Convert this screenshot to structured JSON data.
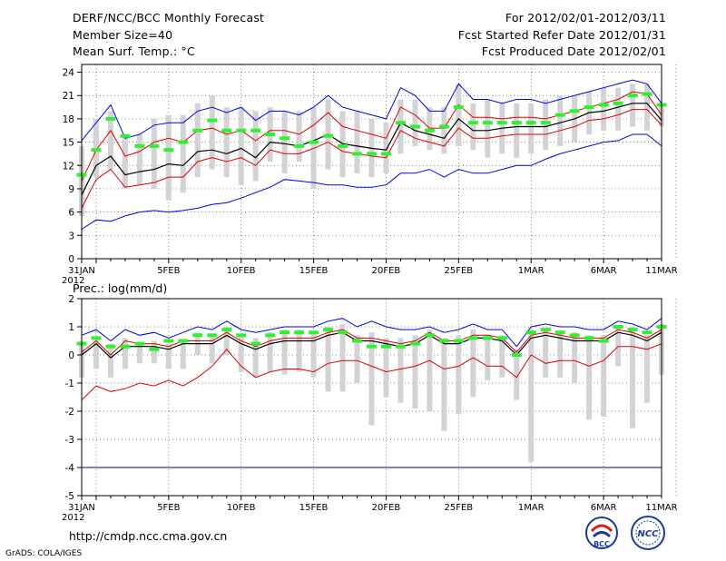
{
  "header": {
    "title": "DERF/NCC/BCC Monthly Forecast",
    "member_size": "Member Size=40",
    "variable": "Mean Surf. Temp.: °C",
    "forecast_period": "For 2012/02/01-2012/03/11",
    "started_refer": "Fcst Started Refer Date 2012/01/31",
    "produced": "Fcst Produced Date 2012/02/01"
  },
  "footer": {
    "url": "http://cmdp.ncc.cma.gov.cn",
    "credit": "GrADS: COLA/IGES",
    "logo_bcc": "BCC",
    "logo_ncc": "NCC"
  },
  "colors": {
    "ensemble_range": "#0000ee",
    "spread": "#dd0000",
    "mean": "#000000",
    "observation": "#33ee33",
    "member_bars": "#d3d3d6",
    "reference": "#000088"
  },
  "chart_data": [
    {
      "type": "line",
      "title": "Mean Surf. Temp.: °C",
      "x_tick_labels": [
        "31JAN",
        "5FEB",
        "10FEB",
        "15FEB",
        "20FEB",
        "25FEB",
        "1MAR",
        "6MAR",
        "11MAR"
      ],
      "x_year_label": "2012",
      "x_range": [
        0,
        40
      ],
      "ylim": [
        0,
        25
      ],
      "y_ticks": [
        0,
        3,
        6,
        9,
        12,
        15,
        18,
        21,
        24
      ],
      "grid": true,
      "series": [
        {
          "name": "member_max",
          "color": "blue",
          "values": [
            15.2,
            17.5,
            19.8,
            15.5,
            16.0,
            17.2,
            17.5,
            17.5,
            19.0,
            19.5,
            18.8,
            19.5,
            17.8,
            19.0,
            19.0,
            18.5,
            19.5,
            21.0,
            19.5,
            19.0,
            18.5,
            18.0,
            22.0,
            21.0,
            19.0,
            19.0,
            22.5,
            20.5,
            20.5,
            20.0,
            20.5,
            20.5,
            20.0,
            20.5,
            21.0,
            21.5,
            22.0,
            22.5,
            23.0,
            22.5,
            20.0
          ]
        },
        {
          "name": "spread_upper",
          "color": "red",
          "values": [
            10.0,
            14.0,
            16.5,
            13.2,
            13.8,
            15.0,
            15.5,
            15.0,
            16.5,
            16.8,
            16.0,
            16.5,
            15.2,
            16.5,
            16.5,
            16.0,
            17.2,
            18.8,
            17.0,
            16.5,
            16.0,
            15.5,
            19.5,
            18.5,
            16.8,
            16.8,
            19.8,
            18.2,
            18.2,
            18.0,
            18.2,
            18.2,
            18.0,
            18.5,
            19.0,
            19.5,
            20.0,
            20.5,
            21.5,
            21.2,
            18.5
          ]
        },
        {
          "name": "ensemble_mean",
          "color": "black",
          "values": [
            8.2,
            12.0,
            13.2,
            10.8,
            11.2,
            11.5,
            12.2,
            12.0,
            13.8,
            14.0,
            13.5,
            14.2,
            13.0,
            15.0,
            14.8,
            14.5,
            15.2,
            16.0,
            14.8,
            14.5,
            14.2,
            14.0,
            17.5,
            16.5,
            16.0,
            15.5,
            18.0,
            16.5,
            16.5,
            16.8,
            17.0,
            17.0,
            17.0,
            17.5,
            18.0,
            18.8,
            19.0,
            19.5,
            20.0,
            20.0,
            17.8
          ]
        },
        {
          "name": "spread_lower",
          "color": "red",
          "values": [
            6.5,
            10.2,
            11.5,
            9.2,
            9.5,
            9.8,
            10.5,
            10.5,
            12.5,
            13.0,
            12.5,
            13.0,
            12.0,
            14.0,
            13.5,
            13.5,
            14.2,
            15.0,
            13.8,
            13.5,
            13.2,
            13.0,
            16.5,
            15.5,
            15.0,
            14.5,
            16.8,
            15.5,
            15.5,
            15.8,
            16.0,
            16.0,
            16.0,
            16.5,
            17.0,
            17.8,
            18.0,
            18.5,
            19.2,
            19.2,
            17.2
          ]
        },
        {
          "name": "member_min",
          "color": "blue",
          "values": [
            3.8,
            5.0,
            4.8,
            5.5,
            6.0,
            6.2,
            6.0,
            6.2,
            6.5,
            7.0,
            7.2,
            7.8,
            8.5,
            9.2,
            10.2,
            10.0,
            9.8,
            9.5,
            9.5,
            9.2,
            9.2,
            9.5,
            11.0,
            11.0,
            11.5,
            10.5,
            11.5,
            11.0,
            11.0,
            11.5,
            12.0,
            12.0,
            12.8,
            13.5,
            14.0,
            14.5,
            15.0,
            15.2,
            16.0,
            16.0,
            14.5
          ]
        }
      ],
      "member_bars": {
        "low": [
          5.5,
          10.5,
          11.5,
          9.0,
          9.5,
          9.0,
          7.5,
          8.5,
          10.5,
          11.5,
          10.5,
          9.5,
          10.0,
          12.5,
          11.0,
          12.5,
          9.0,
          11.5,
          10.5,
          11.0,
          10.5,
          11.0,
          13.5,
          14.5,
          14.0,
          13.5,
          14.5,
          14.0,
          13.0,
          13.5,
          13.0,
          13.5,
          14.0,
          14.5,
          15.0,
          16.0,
          16.5,
          16.5,
          17.0,
          16.5,
          17.0
        ],
        "high": [
          14.5,
          18.0,
          19.0,
          16.0,
          16.0,
          18.0,
          18.5,
          18.5,
          20.0,
          21.0,
          19.5,
          19.5,
          19.0,
          19.5,
          19.0,
          19.0,
          19.5,
          20.5,
          19.0,
          19.0,
          18.0,
          17.5,
          20.5,
          20.5,
          19.5,
          19.5,
          22.5,
          20.0,
          20.5,
          20.0,
          20.0,
          20.0,
          20.5,
          21.0,
          21.0,
          21.5,
          22.0,
          22.0,
          22.5,
          22.5,
          20.0
        ]
      },
      "observation": [
        10.8,
        14.0,
        18.0,
        15.8,
        14.5,
        14.5,
        14.0,
        15.0,
        16.5,
        17.8,
        16.5,
        16.5,
        16.5,
        16.0,
        15.5,
        14.5,
        15.0,
        15.8,
        14.5,
        13.5,
        13.5,
        13.5,
        17.5,
        17.0,
        16.5,
        17.0,
        19.5,
        17.5,
        17.5,
        17.5,
        17.5,
        17.5,
        17.5,
        18.5,
        19.0,
        19.5,
        19.8,
        20.0,
        21.0,
        21.2,
        19.8
      ]
    },
    {
      "type": "line",
      "title": "Prec.: log(mm/d)",
      "x_tick_labels": [
        "31JAN",
        "5FEB",
        "10FEB",
        "15FEB",
        "20FEB",
        "25FEB",
        "1MAR",
        "6MAR",
        "11MAR"
      ],
      "x_year_label": "2012",
      "x_range": [
        0,
        40
      ],
      "ylim": [
        -5,
        2
      ],
      "y_ticks": [
        -5,
        -4,
        -3,
        -2,
        -1,
        0,
        1,
        2
      ],
      "grid": true,
      "reference_line": -4,
      "series": [
        {
          "name": "member_max",
          "color": "blue",
          "values": [
            0.7,
            0.9,
            0.5,
            0.9,
            0.7,
            0.8,
            0.6,
            0.8,
            1.0,
            0.9,
            1.2,
            0.9,
            0.8,
            0.9,
            1.0,
            1.0,
            1.0,
            1.2,
            1.3,
            1.0,
            1.2,
            1.0,
            0.9,
            0.9,
            1.0,
            0.8,
            0.9,
            1.1,
            0.9,
            0.9,
            0.3,
            1.0,
            1.1,
            1.0,
            1.0,
            0.9,
            0.9,
            1.2,
            1.1,
            0.9,
            1.3
          ]
        },
        {
          "name": "spread_upper",
          "color": "red",
          "values": [
            0.1,
            0.5,
            0.0,
            0.5,
            0.4,
            0.4,
            0.3,
            0.5,
            0.5,
            0.5,
            0.8,
            0.5,
            0.3,
            0.5,
            0.6,
            0.6,
            0.6,
            0.8,
            0.9,
            0.6,
            0.6,
            0.5,
            0.4,
            0.5,
            0.8,
            0.5,
            0.5,
            0.7,
            0.7,
            0.6,
            0.1,
            0.7,
            0.8,
            0.7,
            0.6,
            0.6,
            0.6,
            0.9,
            0.8,
            0.6,
            0.9
          ]
        },
        {
          "name": "ensemble_mean",
          "color": "black",
          "values": [
            0.0,
            0.4,
            -0.1,
            0.3,
            0.3,
            0.3,
            0.2,
            0.4,
            0.4,
            0.4,
            0.7,
            0.4,
            0.2,
            0.4,
            0.5,
            0.5,
            0.5,
            0.7,
            0.8,
            0.5,
            0.5,
            0.4,
            0.3,
            0.4,
            0.7,
            0.4,
            0.4,
            0.6,
            0.6,
            0.5,
            0.0,
            0.6,
            0.7,
            0.6,
            0.5,
            0.5,
            0.5,
            0.8,
            0.7,
            0.5,
            0.8
          ]
        },
        {
          "name": "spread_lower",
          "color": "red",
          "values": [
            -1.6,
            -1.1,
            -1.3,
            -1.2,
            -1.0,
            -1.1,
            -0.9,
            -1.1,
            -0.8,
            -0.4,
            0.2,
            -0.4,
            -0.8,
            -0.6,
            -0.5,
            -0.5,
            -0.6,
            -0.3,
            -0.2,
            -0.2,
            -0.4,
            -0.6,
            -0.5,
            -0.4,
            -0.2,
            -0.5,
            -0.4,
            -0.1,
            -0.4,
            -0.4,
            -0.8,
            0.0,
            -0.3,
            -0.2,
            -0.2,
            -0.4,
            -0.2,
            0.3,
            0.3,
            0.2,
            0.4
          ]
        }
      ],
      "member_bars": {
        "low": [
          -0.8,
          -0.5,
          -0.8,
          -0.5,
          -0.3,
          -0.3,
          -0.5,
          -0.5,
          0.0,
          -0.3,
          0.0,
          -0.6,
          -0.8,
          -0.6,
          -0.7,
          -0.6,
          -0.8,
          -1.3,
          -1.3,
          -1.0,
          -2.5,
          -1.5,
          -1.7,
          -1.9,
          -2.0,
          -2.7,
          -2.1,
          -1.5,
          -0.9,
          -0.8,
          -1.6,
          -3.8,
          -0.8,
          -0.8,
          -1.0,
          -2.3,
          -2.2,
          -0.4,
          -2.6,
          -1.7,
          -0.7
        ],
        "high": [
          0.5,
          0.6,
          0.4,
          0.6,
          0.4,
          0.5,
          0.4,
          0.5,
          0.8,
          0.7,
          1.0,
          0.7,
          0.6,
          0.8,
          0.9,
          0.9,
          0.8,
          1.0,
          1.1,
          0.7,
          0.8,
          0.6,
          0.6,
          0.7,
          0.9,
          0.6,
          0.7,
          0.9,
          0.7,
          0.7,
          0.2,
          0.9,
          0.9,
          0.8,
          0.8,
          0.7,
          0.7,
          1.0,
          1.0,
          0.7,
          1.1
        ]
      },
      "observation": [
        0.4,
        0.6,
        0.3,
        0.3,
        0.4,
        0.2,
        0.5,
        0.5,
        0.7,
        0.7,
        0.9,
        0.7,
        0.4,
        0.7,
        0.8,
        0.8,
        0.8,
        0.9,
        0.8,
        0.5,
        0.3,
        0.3,
        0.3,
        0.4,
        0.7,
        0.5,
        0.5,
        0.6,
        0.6,
        0.6,
        0.0,
        0.8,
        0.9,
        0.8,
        0.7,
        0.6,
        0.5,
        1.0,
        0.9,
        0.8,
        1.0
      ]
    }
  ]
}
